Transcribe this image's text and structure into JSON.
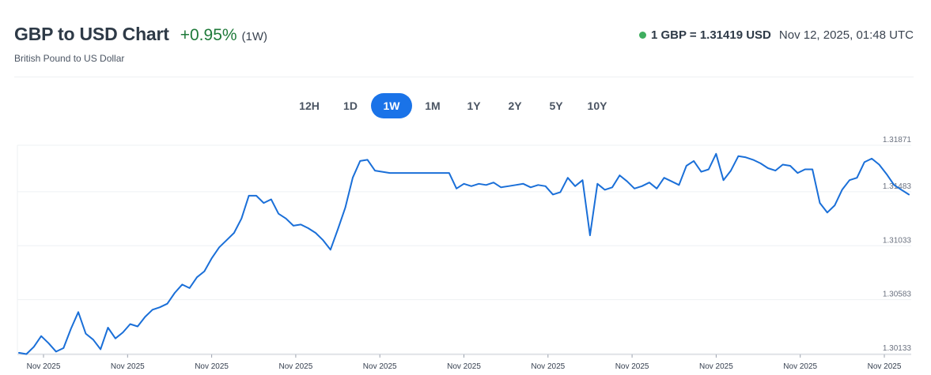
{
  "header": {
    "title": "GBP to USD Chart",
    "change": "+0.95%",
    "period": "(1W)",
    "subtitle": "British Pound to US Dollar",
    "rate": "1 GBP = 1.31419 USD",
    "timestamp": "Nov 12, 2025, 01:48 UTC"
  },
  "tabs": [
    {
      "label": "12H",
      "active": false
    },
    {
      "label": "1D",
      "active": false
    },
    {
      "label": "1W",
      "active": true
    },
    {
      "label": "1M",
      "active": false
    },
    {
      "label": "1Y",
      "active": false
    },
    {
      "label": "2Y",
      "active": false
    },
    {
      "label": "5Y",
      "active": false
    },
    {
      "label": "10Y",
      "active": false
    }
  ],
  "colors": {
    "line": "#1a6fd8",
    "accent": "#1a73e8",
    "positive": "#1f7a3a",
    "live_dot": "#3fae5f"
  },
  "chart_data": {
    "type": "line",
    "title": "",
    "ylim": [
      1.30133,
      1.31871
    ],
    "yticks": [
      1.31871,
      1.31483,
      1.31033,
      1.30583,
      1.30133
    ],
    "ytick_labels": [
      "1.31871",
      "1.31483",
      "1.31033",
      "1.30583",
      "1.30133"
    ],
    "xtick_labels": [
      "Nov 2025",
      "Nov 2025",
      "Nov 2025",
      "Nov 2025",
      "Nov 2025",
      "Nov 2025",
      "Nov 2025",
      "Nov 2025",
      "Nov 2025",
      "Nov 2025",
      "Nov 2025"
    ],
    "grid": true,
    "series": [
      {
        "values": [
          1.3014,
          1.3013,
          1.3019,
          1.3028,
          1.3022,
          1.3015,
          1.3018,
          1.3034,
          1.3048,
          1.303,
          1.3025,
          1.3017,
          1.3035,
          1.3026,
          1.3031,
          1.3038,
          1.3036,
          1.3044,
          1.305,
          1.3052,
          1.3055,
          1.3064,
          1.3071,
          1.3068,
          1.3077,
          1.3082,
          1.3093,
          1.3102,
          1.3108,
          1.3114,
          1.3126,
          1.3145,
          1.3145,
          1.3139,
          1.3142,
          1.313,
          1.3126,
          1.312,
          1.3121,
          1.3118,
          1.3114,
          1.3108,
          1.31,
          1.3117,
          1.3135,
          1.316,
          1.3174,
          1.3175,
          1.3166,
          1.3165,
          1.3164,
          1.3164,
          1.3164,
          1.3164,
          1.3164,
          1.3164,
          1.3164,
          1.3164,
          1.3164,
          1.3151,
          1.3155,
          1.3153,
          1.3155,
          1.3154,
          1.3156,
          1.3152,
          1.3153,
          1.3154,
          1.3155,
          1.3152,
          1.3154,
          1.3153,
          1.3146,
          1.3148,
          1.316,
          1.3153,
          1.3158,
          1.3112,
          1.3155,
          1.315,
          1.3152,
          1.3162,
          1.3157,
          1.3151,
          1.3153,
          1.3156,
          1.3151,
          1.316,
          1.3157,
          1.3154,
          1.317,
          1.3174,
          1.3165,
          1.3167,
          1.318,
          1.3158,
          1.3166,
          1.3178,
          1.3177,
          1.3175,
          1.3172,
          1.3168,
          1.3166,
          1.3171,
          1.317,
          1.3164,
          1.3167,
          1.3167,
          1.3139,
          1.3131,
          1.3137,
          1.315,
          1.3158,
          1.316,
          1.3173,
          1.3176,
          1.3171,
          1.3163,
          1.3154,
          1.315,
          1.3146
        ]
      }
    ]
  }
}
